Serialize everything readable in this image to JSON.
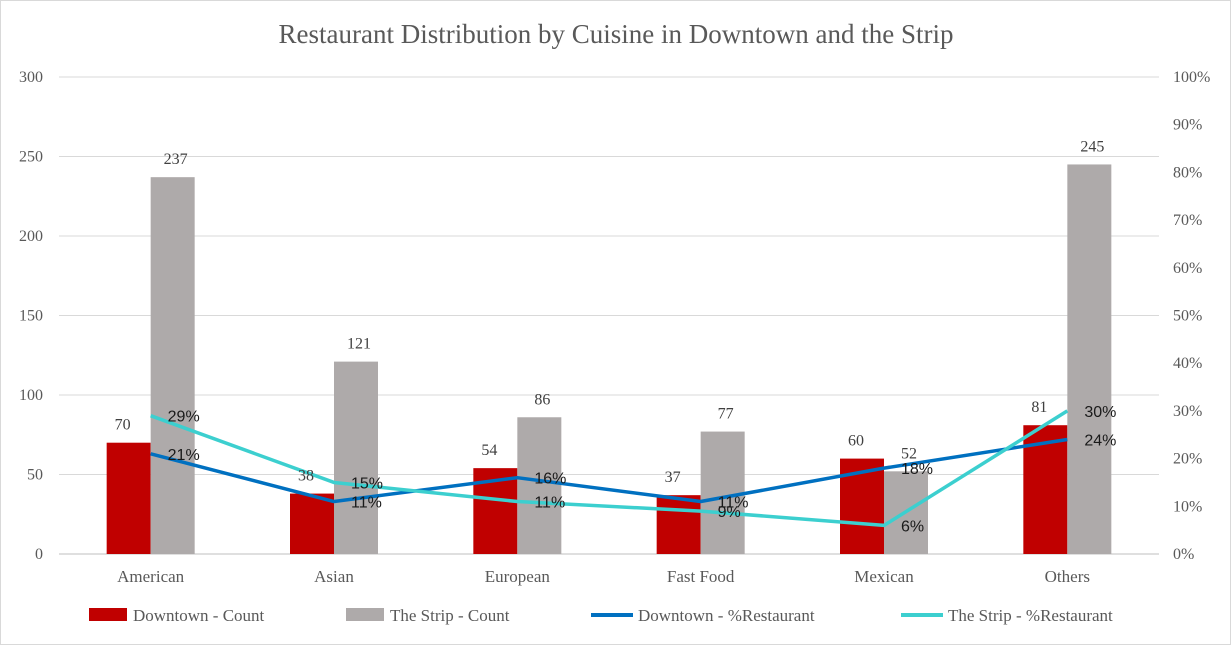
{
  "chart_data": {
    "type": "bar",
    "title": "Restaurant Distribution by Cuisine in Downtown and the Strip",
    "categories": [
      "American",
      "Asian",
      "European",
      "Fast Food",
      "Mexican",
      "Others"
    ],
    "y_left": {
      "ylim": [
        0,
        300
      ],
      "ticks": [
        0,
        50,
        100,
        150,
        200,
        250,
        300
      ]
    },
    "y_right": {
      "ylim": [
        0,
        100
      ],
      "ticks": [
        "0%",
        "10%",
        "20%",
        "30%",
        "40%",
        "50%",
        "60%",
        "70%",
        "80%",
        "90%",
        "100%"
      ]
    },
    "grid": true,
    "legend_position": "bottom",
    "series": [
      {
        "name": "Downtown -  Count",
        "type": "bar",
        "axis": "left",
        "color": "#c00000",
        "values": [
          70,
          38,
          54,
          37,
          60,
          81
        ],
        "labels": [
          "70",
          "38",
          "54",
          "37",
          "60",
          "81"
        ]
      },
      {
        "name": "The Strip - Count",
        "type": "bar",
        "axis": "left",
        "color": "#aeaaaa",
        "values": [
          237,
          121,
          86,
          77,
          52,
          245
        ],
        "labels": [
          "237",
          "121",
          "86",
          "77",
          "52",
          "245"
        ]
      },
      {
        "name": "Downtown - %Restaurant",
        "type": "line",
        "axis": "right",
        "color": "#0070c0",
        "values": [
          21,
          11,
          16,
          11,
          18,
          24
        ],
        "labels": [
          "21%",
          "11%",
          "16%",
          "11%",
          "18%",
          "24%"
        ]
      },
      {
        "name": "The Strip - %Restaurant",
        "type": "line",
        "axis": "right",
        "color": "#3ccfcf",
        "values": [
          29,
          15,
          11,
          9,
          6,
          30
        ],
        "labels": [
          "29%",
          "15%",
          "11%",
          "9%",
          "6%",
          "30%"
        ]
      }
    ]
  }
}
